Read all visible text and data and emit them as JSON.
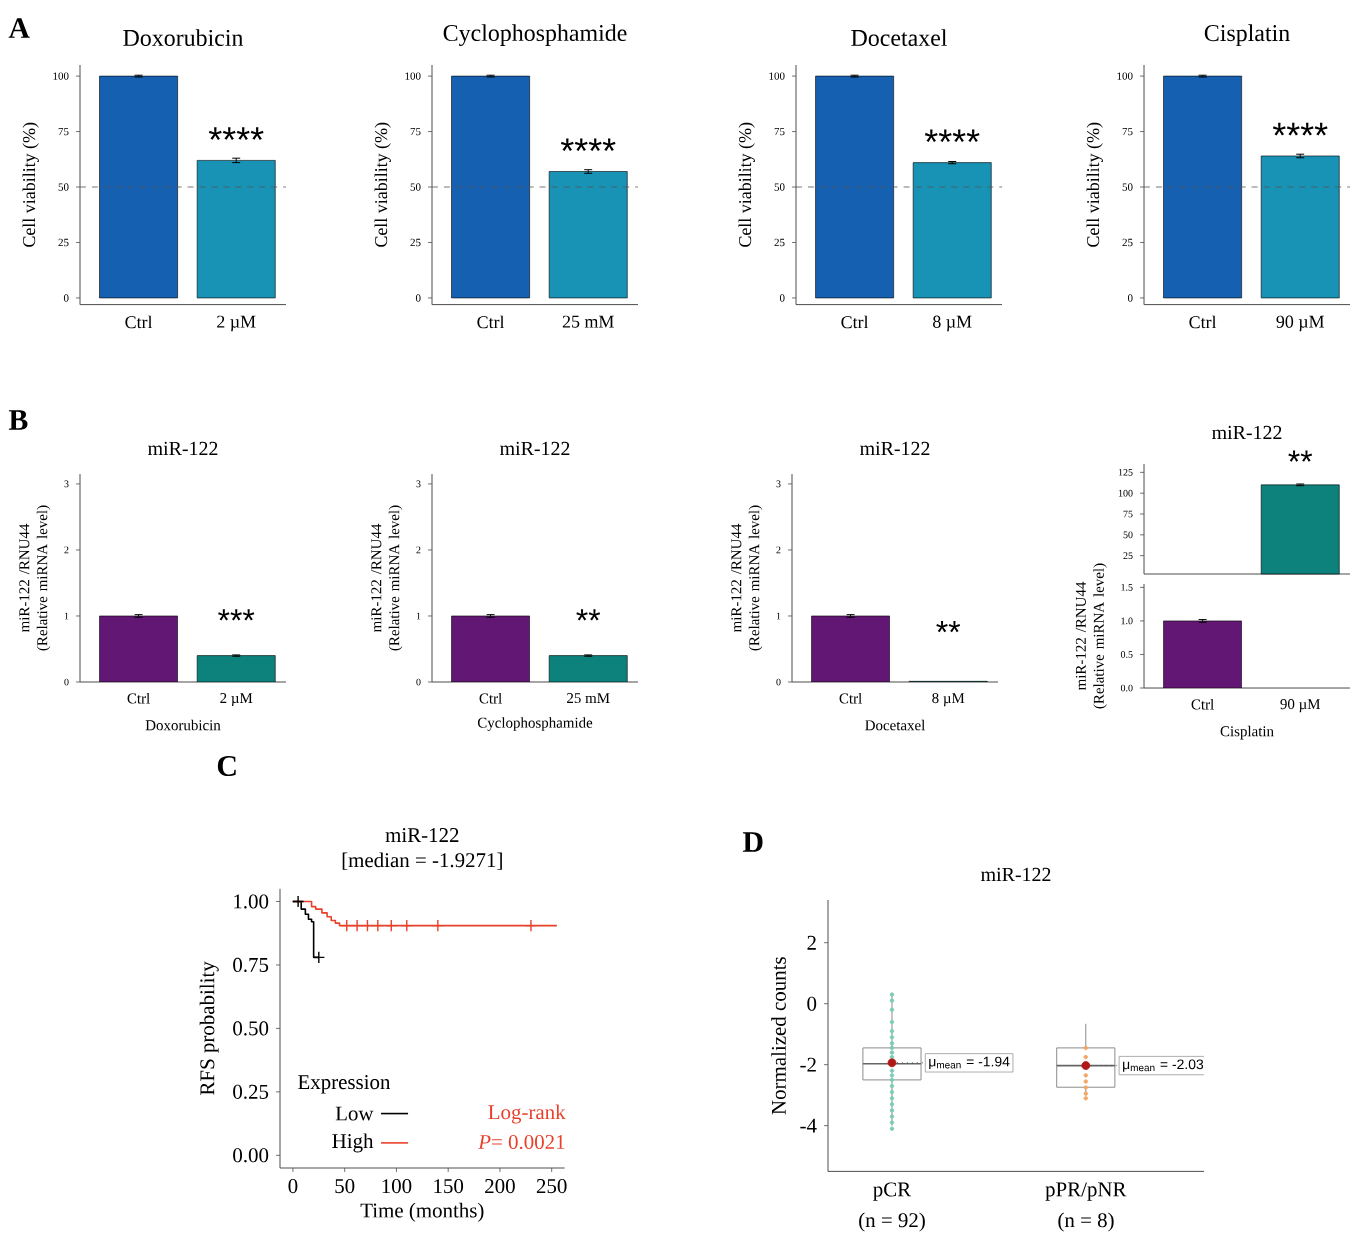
{
  "chart_data": [
    {
      "type": "bar",
      "title": "Doxorubicin",
      "ylabel": "Cell viability (%)",
      "categories": [
        "Ctrl",
        "2 µM"
      ],
      "values": [
        100,
        62
      ],
      "errors": [
        0.4,
        1
      ],
      "colors": [
        "#1560b0",
        "#1893b5"
      ],
      "ylim": [
        -3,
        105
      ],
      "yticks": [
        0,
        25,
        50,
        75,
        100
      ],
      "ref_lines": [
        {
          "axis": "y",
          "value": 50,
          "color": "#555555",
          "line_style": "dashed"
        }
      ],
      "annotations": [
        "A",
        {
          "text": "****",
          "x": "2 µM",
          "y": 62
        }
      ]
    },
    {
      "type": "bar",
      "title": "Cyclophosphamide",
      "ylabel": "Cell viability (%)",
      "categories": [
        "Ctrl",
        "25 mM"
      ],
      "values": [
        100,
        57
      ],
      "errors": [
        0.4,
        0.8
      ],
      "colors": [
        "#1560b0",
        "#1893b5"
      ],
      "ylim": [
        -3,
        105
      ],
      "yticks": [
        0,
        25,
        50,
        75,
        100
      ],
      "ref_lines": [
        {
          "axis": "y",
          "value": 50,
          "color": "#555555",
          "line_style": "dashed"
        }
      ],
      "annotations": [
        {
          "text": "****",
          "x": "25 mM",
          "y": 57
        }
      ]
    },
    {
      "type": "bar",
      "title": "Docetaxel",
      "ylabel": "Cell viability (%)",
      "categories": [
        "Ctrl",
        "8 µM"
      ],
      "values": [
        100,
        61
      ],
      "errors": [
        0.4,
        0.5
      ],
      "colors": [
        "#1560b0",
        "#1893b5"
      ],
      "ylim": [
        -3,
        105
      ],
      "yticks": [
        0,
        25,
        50,
        75,
        100
      ],
      "ref_lines": [
        {
          "axis": "y",
          "value": 50,
          "color": "#555555",
          "line_style": "dashed"
        }
      ],
      "annotations": [
        {
          "text": "****",
          "x": "8 µM",
          "y": 61
        }
      ]
    },
    {
      "type": "bar",
      "title": "Cisplatin",
      "ylabel": "Cell viability (%)",
      "categories": [
        "Ctrl",
        "90 µM"
      ],
      "values": [
        100,
        64
      ],
      "errors": [
        0.4,
        0.8
      ],
      "colors": [
        "#1560b0",
        "#1893b5"
      ],
      "ylim": [
        -3,
        105
      ],
      "yticks": [
        0,
        25,
        50,
        75,
        100
      ],
      "ref_lines": [
        {
          "axis": "y",
          "value": 50,
          "color": "#555555",
          "line_style": "dashed"
        }
      ],
      "annotations": [
        {
          "text": "****",
          "x": "90 µM",
          "y": 64
        }
      ]
    },
    {
      "type": "bar",
      "title": "miR-122",
      "xlabel": "Doxorubicin",
      "ylabel": "miR-122 /RNU44 (Relative miRNA level)",
      "categories": [
        "Ctrl",
        "2 µM"
      ],
      "values": [
        1.0,
        0.4
      ],
      "errors": [
        0.02,
        0.01
      ],
      "colors": [
        "#621774",
        "#0d827c"
      ],
      "ylim": [
        0,
        3.15
      ],
      "yticks": [
        0,
        1,
        2,
        3
      ],
      "annotations": [
        "B",
        {
          "text": "***",
          "x": "2 µM",
          "y": 0.4
        }
      ]
    },
    {
      "type": "bar",
      "title": "miR-122",
      "xlabel": "Cyclophosphamide",
      "ylabel": "miR-122 /RNU44 (Relative miRNA level)",
      "categories": [
        "Ctrl",
        "25 mM"
      ],
      "values": [
        1.0,
        0.4
      ],
      "errors": [
        0.02,
        0.01
      ],
      "colors": [
        "#621774",
        "#0d827c"
      ],
      "ylim": [
        0,
        3.15
      ],
      "yticks": [
        0,
        1,
        2,
        3
      ],
      "annotations": [
        {
          "text": "**",
          "x": "25 mM",
          "y": 0.4
        }
      ]
    },
    {
      "type": "bar",
      "title": "miR-122",
      "xlabel": "Docetaxel",
      "ylabel": "miR-122 /RNU44 (Relative miRNA level)",
      "categories": [
        "Ctrl",
        "8 µM"
      ],
      "values": [
        1.0,
        0.01
      ],
      "errors": [
        0.02,
        null
      ],
      "colors": [
        "#621774",
        "#0d827c"
      ],
      "ylim": [
        0,
        3.15
      ],
      "yticks": [
        0,
        1,
        2,
        3
      ],
      "annotations": [
        {
          "text": "**",
          "x": "8 µM",
          "y": 0.01
        }
      ]
    },
    {
      "type": "bar",
      "title": "miR-122",
      "categories": [
        null
      ],
      "values": [
        110
      ],
      "errors": [
        1
      ],
      "colors": [
        "#0d827c"
      ],
      "ylim": [
        3,
        135
      ],
      "yticks": [
        25,
        50,
        75,
        100,
        125
      ],
      "annotations": [
        {
          "text": "**",
          "y": 110
        }
      ]
    },
    {
      "type": "bar",
      "xlabel": "Cisplatin",
      "ylabel": "miR-122 /RNU44 (Relative miRNA level)",
      "categories": [
        "Ctrl",
        "90 µM"
      ],
      "values": [
        1.0,
        null
      ],
      "errors": [
        0.02,
        null
      ],
      "colors": [
        "#621774",
        "#0d827c"
      ],
      "ylim": [
        0,
        1.55
      ],
      "yticks": [
        {
          "value": 0,
          "label": "0.0"
        },
        {
          "value": 0.5,
          "label": "0.5"
        },
        {
          "value": 1,
          "label": "1.0"
        },
        {
          "value": 1.5,
          "label": "1.5"
        }
      ]
    },
    {
      "type": "step",
      "title": "miR-122",
      "subtitle": "[median = -1.9271]",
      "xlabel": "Time (months)",
      "ylabel": "RFS probability",
      "legend_title": "Expression",
      "legend": "bottom left",
      "xlim": [
        -12.5,
        262.5
      ],
      "ylim": [
        -0.05,
        1.05
      ],
      "xticks": [
        0,
        50,
        100,
        150,
        200,
        250
      ],
      "yticks": [
        {
          "value": 0,
          "label": "0.00"
        },
        {
          "value": 0.25,
          "label": "0.25"
        },
        {
          "value": 0.5,
          "label": "0.50"
        },
        {
          "value": 0.75,
          "label": "0.75"
        },
        {
          "value": 1,
          "label": "1.00"
        }
      ],
      "series": [
        {
          "name": "Low",
          "color": "#000000",
          "x": [
            0,
            8,
            12,
            15,
            18,
            20,
            25
          ],
          "values": [
            1,
            0.97,
            0.95,
            0.93,
            0.92,
            0.78,
            0.78
          ]
        },
        {
          "name": "High",
          "color": "#e8402b",
          "x": [
            0,
            18,
            22,
            28,
            33,
            37,
            41,
            45,
            255
          ],
          "values": [
            1,
            0.98,
            0.97,
            0.955,
            0.94,
            0.925,
            0.915,
            0.905,
            0.905
          ]
        },
        {
          "type": "scatter",
          "marker": "cross",
          "color": "#000000",
          "x": [
            5,
            25
          ],
          "values": [
            1,
            0.78
          ]
        },
        {
          "type": "scatter",
          "marker": "cross",
          "color": "#e8402b",
          "x": [
            52,
            62,
            72,
            82,
            95,
            110,
            140,
            230
          ],
          "values": [
            0.905,
            0.905,
            0.905,
            0.905,
            0.905,
            0.905,
            0.905,
            0.905
          ]
        }
      ],
      "annotations": [
        "C",
        "Log-rank",
        "*P*= 0.0021"
      ]
    },
    {
      "type": "box",
      "title": "miR-122",
      "ylabel": "Normalized counts",
      "categories": [
        "pCR",
        "pPR/pNR"
      ],
      "color": "#8c8c8c",
      "ylim": [
        -5.5,
        3.4
      ],
      "yticks": [
        -4,
        -2,
        0,
        2
      ],
      "boxes": [
        {
          "low": -4.0,
          "q1": -2.5,
          "median": -1.97,
          "q3": -1.45,
          "high": 0.3,
          "mean": -1.94
        },
        {
          "low": -3.0,
          "q1": -2.74,
          "median": -2.03,
          "q3": -1.45,
          "high": -0.66,
          "mean": -2.03
        }
      ],
      "series": [
        {
          "type": "scatter",
          "color": "#7ccbb6",
          "x": [
            "pCR",
            "pCR",
            "pCR",
            "pCR",
            "pCR",
            "pCR",
            "pCR",
            "pCR",
            "pCR",
            "pCR",
            "pCR",
            "pCR",
            "pCR",
            "pCR",
            "pCR",
            "pCR",
            "pCR",
            "pCR",
            "pCR",
            "pCR",
            "pCR"
          ],
          "values": [
            0.3,
            0.1,
            -0.2,
            -0.6,
            -0.9,
            -1.1,
            -1.3,
            -1.45,
            -1.6,
            -1.75,
            -2.2,
            -2.35,
            -2.5,
            -2.7,
            -2.9,
            -3.1,
            -3.3,
            -3.5,
            -3.7,
            -3.9,
            -4.1
          ]
        },
        {
          "type": "scatter",
          "color": "#f2a766",
          "x": [
            "pPR/pNR",
            "pPR/pNR",
            "pPR/pNR",
            "pPR/pNR",
            "pPR/pNR",
            "pPR/pNR",
            "pPR/pNR"
          ],
          "values": [
            -1.45,
            -1.75,
            -2.35,
            -2.55,
            -2.75,
            -2.95,
            -3.1
          ]
        }
      ],
      "annotations": [
        "D",
        "(n = 92)",
        "(n = 8)",
        {
          "text": "μ$_{mean}$ = -1.94",
          "x": "pCR",
          "y": -1.94
        },
        {
          "text": "μ$_{mean}$ = -2.03",
          "x": "pPR/pNR",
          "y": -2.03
        }
      ]
    }
  ]
}
